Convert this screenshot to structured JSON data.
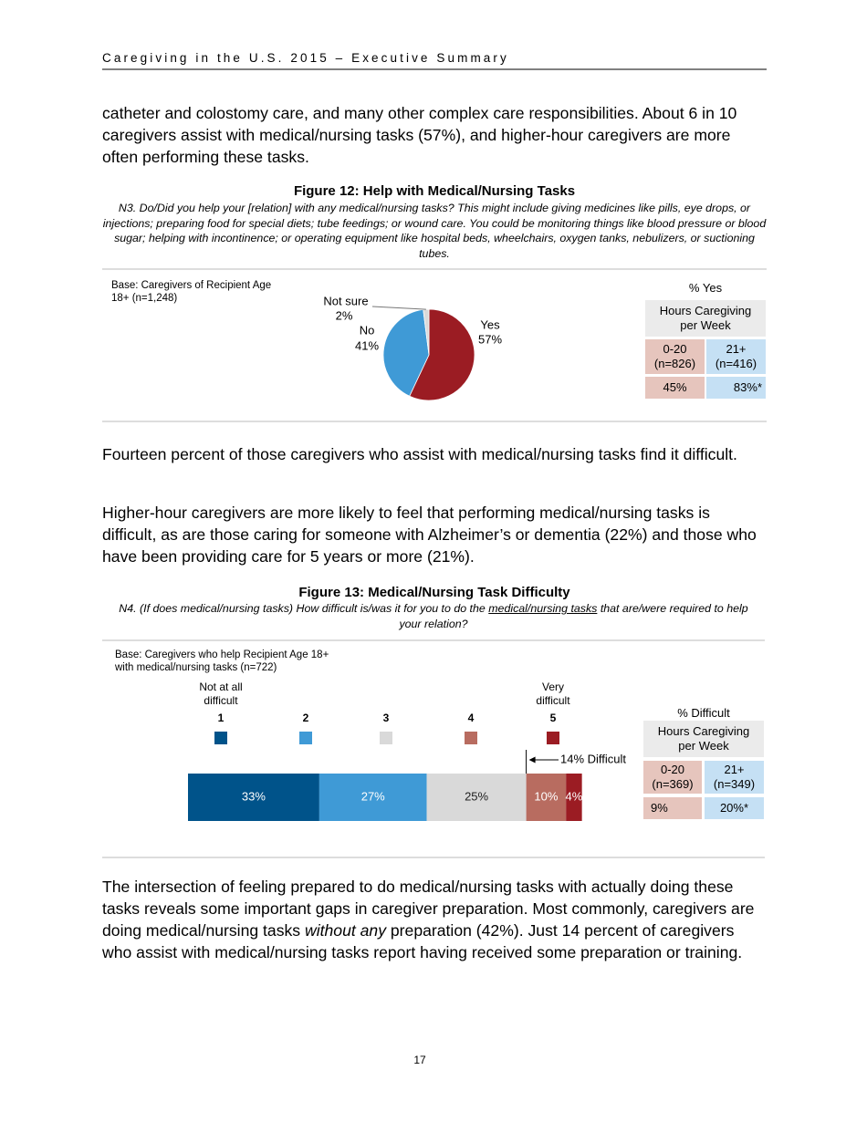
{
  "header": "Caregiving in the U.S. 2015 – Executive Summary",
  "paragraphs": [
    "catheter and colostomy care, and many other complex care responsibilities. About 6 in 10 caregivers assist with medical/nursing tasks (57%), and higher-hour caregivers are more often performing these tasks.",
    "Fourteen percent of those caregivers who assist with medical/nursing tasks find it difficult.",
    "Higher-hour caregivers are more likely to feel that performing medical/nursing tasks is difficult, as are those caring for someone with Alzheimer’s or dementia (22%) and those who have been providing care for 5 years or more (21%)."
  ],
  "closing": {
    "before": "The intersection of feeling prepared to do medical/nursing tasks with actually doing these tasks reveals some important gaps in caregiver preparation. Most commonly, caregivers are doing medical/nursing tasks ",
    "emphasis": "without any",
    "after": " preparation (42%). Just 14 percent of caregivers who assist with medical/nursing tasks report having received some preparation or training."
  },
  "page_number": "17",
  "chart_data": [
    {
      "type": "pie",
      "title": "Figure 12: Help with Medical/Nursing Tasks",
      "question": "N3. Do/Did you help your [relation] with any medical/nursing tasks? This might include giving medicines like pills, eye drops, or injections; preparing food for special diets; tube feedings; or wound care. You could be monitoring things like blood pressure or blood sugar; helping with incontinence; or operating equipment like hospital beds, wheelchairs, oxygen tanks, nebulizers, or suctioning tubes.",
      "base": "Base: Caregivers of Recipient Age 18+ (n=1,248)",
      "categories": [
        "Yes",
        "No",
        "Not sure"
      ],
      "values": [
        57,
        41,
        2
      ],
      "value_labels": [
        "57%",
        "41%",
        "2%"
      ],
      "colors": [
        "#9b1c23",
        "#3f9ad6",
        "#d9d9d9"
      ],
      "table": {
        "title": "% Yes",
        "header": "Hours Caregiving per Week",
        "columns": [
          {
            "label": "0-20",
            "n": "(n=826)",
            "value": "45%"
          },
          {
            "label": "21+",
            "n": "(n=416)",
            "value": "83%*"
          }
        ]
      }
    },
    {
      "type": "bar",
      "orientation": "horizontal",
      "stacked": true,
      "title": "Figure 13: Medical/Nursing Task Difficulty",
      "question": {
        "before": "N4. (If does medical/nursing tasks) How difficult is/was it for you to do the ",
        "underlined": "medical/nursing tasks",
        "after": " that are/were required to help your relation?"
      },
      "base": "Base: Caregivers who help Recipient Age 18+ with medical/nursing tasks (n=722)",
      "scale_labels": {
        "low": "Not at all difficult",
        "high": "Very difficult"
      },
      "categories": [
        null
      ],
      "xlim": [
        0,
        100
      ],
      "series": [
        {
          "name": "1",
          "color": "#00538a",
          "values": [
            33
          ],
          "value_labels": [
            "33%"
          ]
        },
        {
          "name": "2",
          "color": "#3f9ad6",
          "values": [
            27
          ],
          "value_labels": [
            "27%"
          ]
        },
        {
          "name": "3",
          "color": "#d9d9d9",
          "values": [
            25
          ],
          "value_labels": [
            "25%"
          ]
        },
        {
          "name": "4",
          "color": "#b86c60",
          "values": [
            10
          ],
          "value_labels": [
            "10%"
          ]
        },
        {
          "name": "5",
          "color": "#9b1c23",
          "values": [
            4
          ],
          "value_labels": [
            "4%"
          ]
        }
      ],
      "annotation": "14% Difficult",
      "table": {
        "title": "% Difficult",
        "header": "Hours Caregiving per Week",
        "columns": [
          {
            "label": "0-20",
            "n": "(n=369)",
            "value": "9%"
          },
          {
            "label": "21+",
            "n": "(n=349)",
            "value": "20%*"
          }
        ]
      }
    }
  ]
}
